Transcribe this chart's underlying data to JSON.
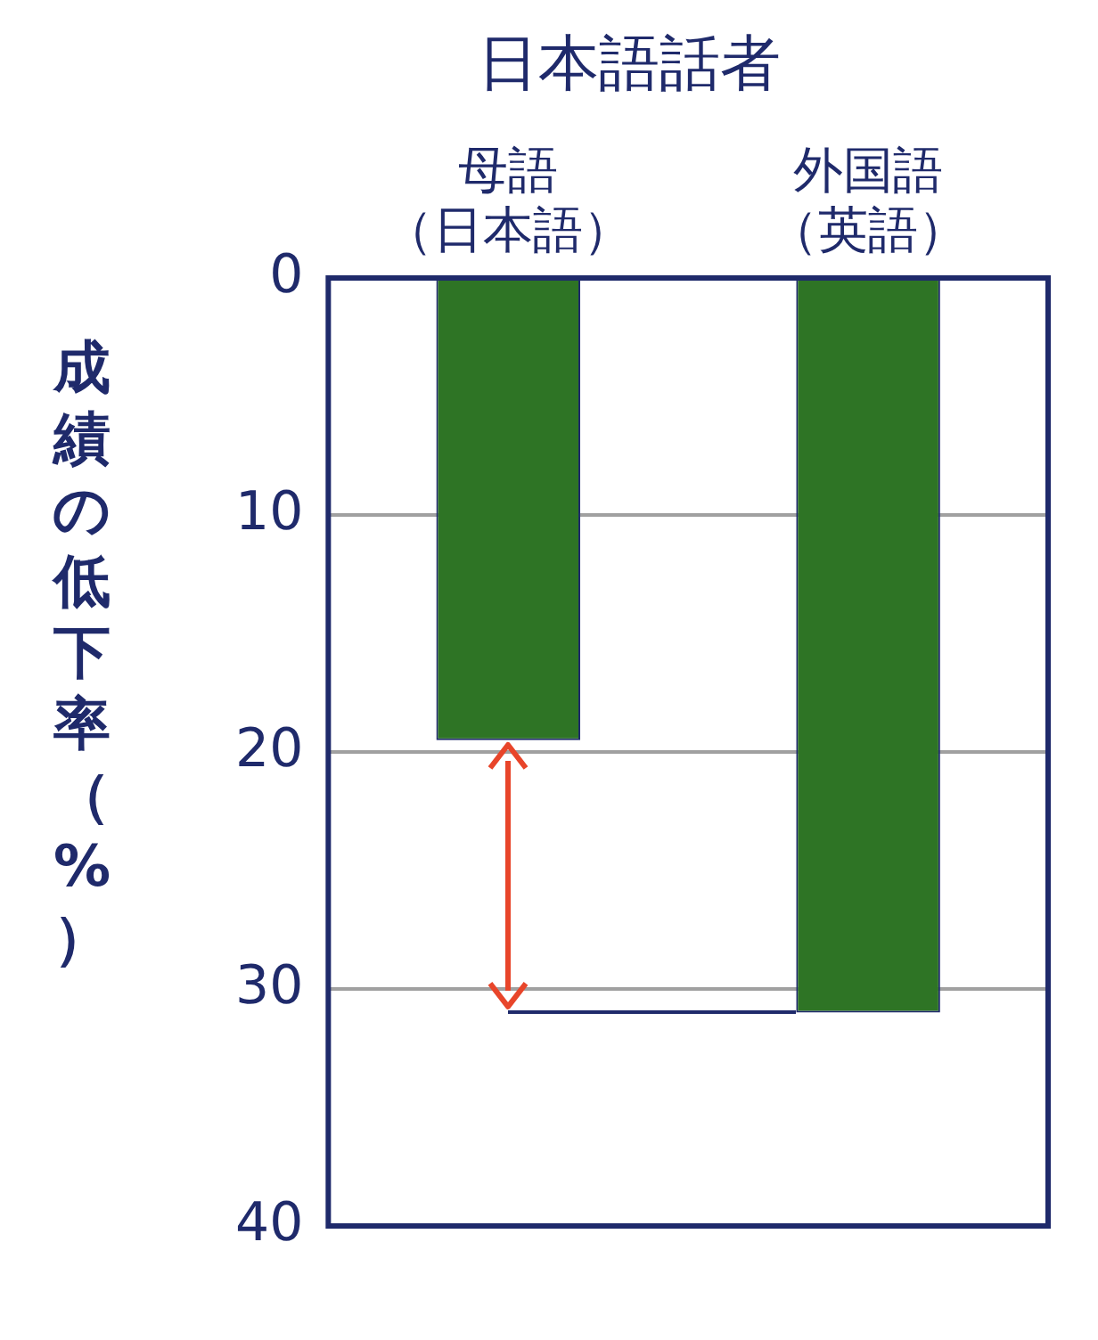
{
  "chart_data": {
    "type": "bar",
    "title": "日本語話者",
    "ylabel": "成績の低下率（%）",
    "categories": [
      "母語（日本語）",
      "外国語（英語）"
    ],
    "values": [
      19.5,
      31
    ],
    "color": "#2e7425",
    "ylim": [
      40,
      0
    ],
    "yticks": [
      0,
      10,
      20,
      30,
      40
    ],
    "grid": "y",
    "legend": false
  }
}
